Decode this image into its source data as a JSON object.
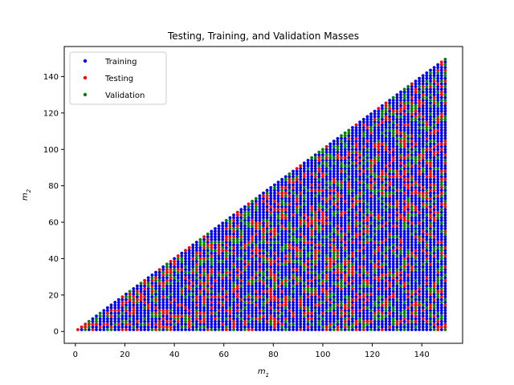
{
  "chart_data": {
    "type": "scatter",
    "title": "Testing, Training, and Validation Masses",
    "xlabel": "m",
    "xlabel_sub": "1",
    "ylabel": "m",
    "ylabel_sub": "2",
    "xlim": [
      -4.5,
      156.5
    ],
    "ylim": [
      -6.5,
      156.5
    ],
    "xticks": [
      0,
      20,
      40,
      60,
      80,
      100,
      120,
      140
    ],
    "yticks": [
      0,
      20,
      40,
      60,
      80,
      100,
      120,
      140
    ],
    "grid": false,
    "legend_position": "top-left",
    "region": {
      "description_points": [
        [
          1,
          1
        ],
        [
          150,
          1
        ],
        [
          150,
          150
        ]
      ]
    },
    "series": [
      {
        "name": "Training",
        "color": "#0000ff"
      },
      {
        "name": "Testing",
        "color": "#ff0000"
      },
      {
        "name": "Validation",
        "color": "#008000"
      }
    ]
  }
}
